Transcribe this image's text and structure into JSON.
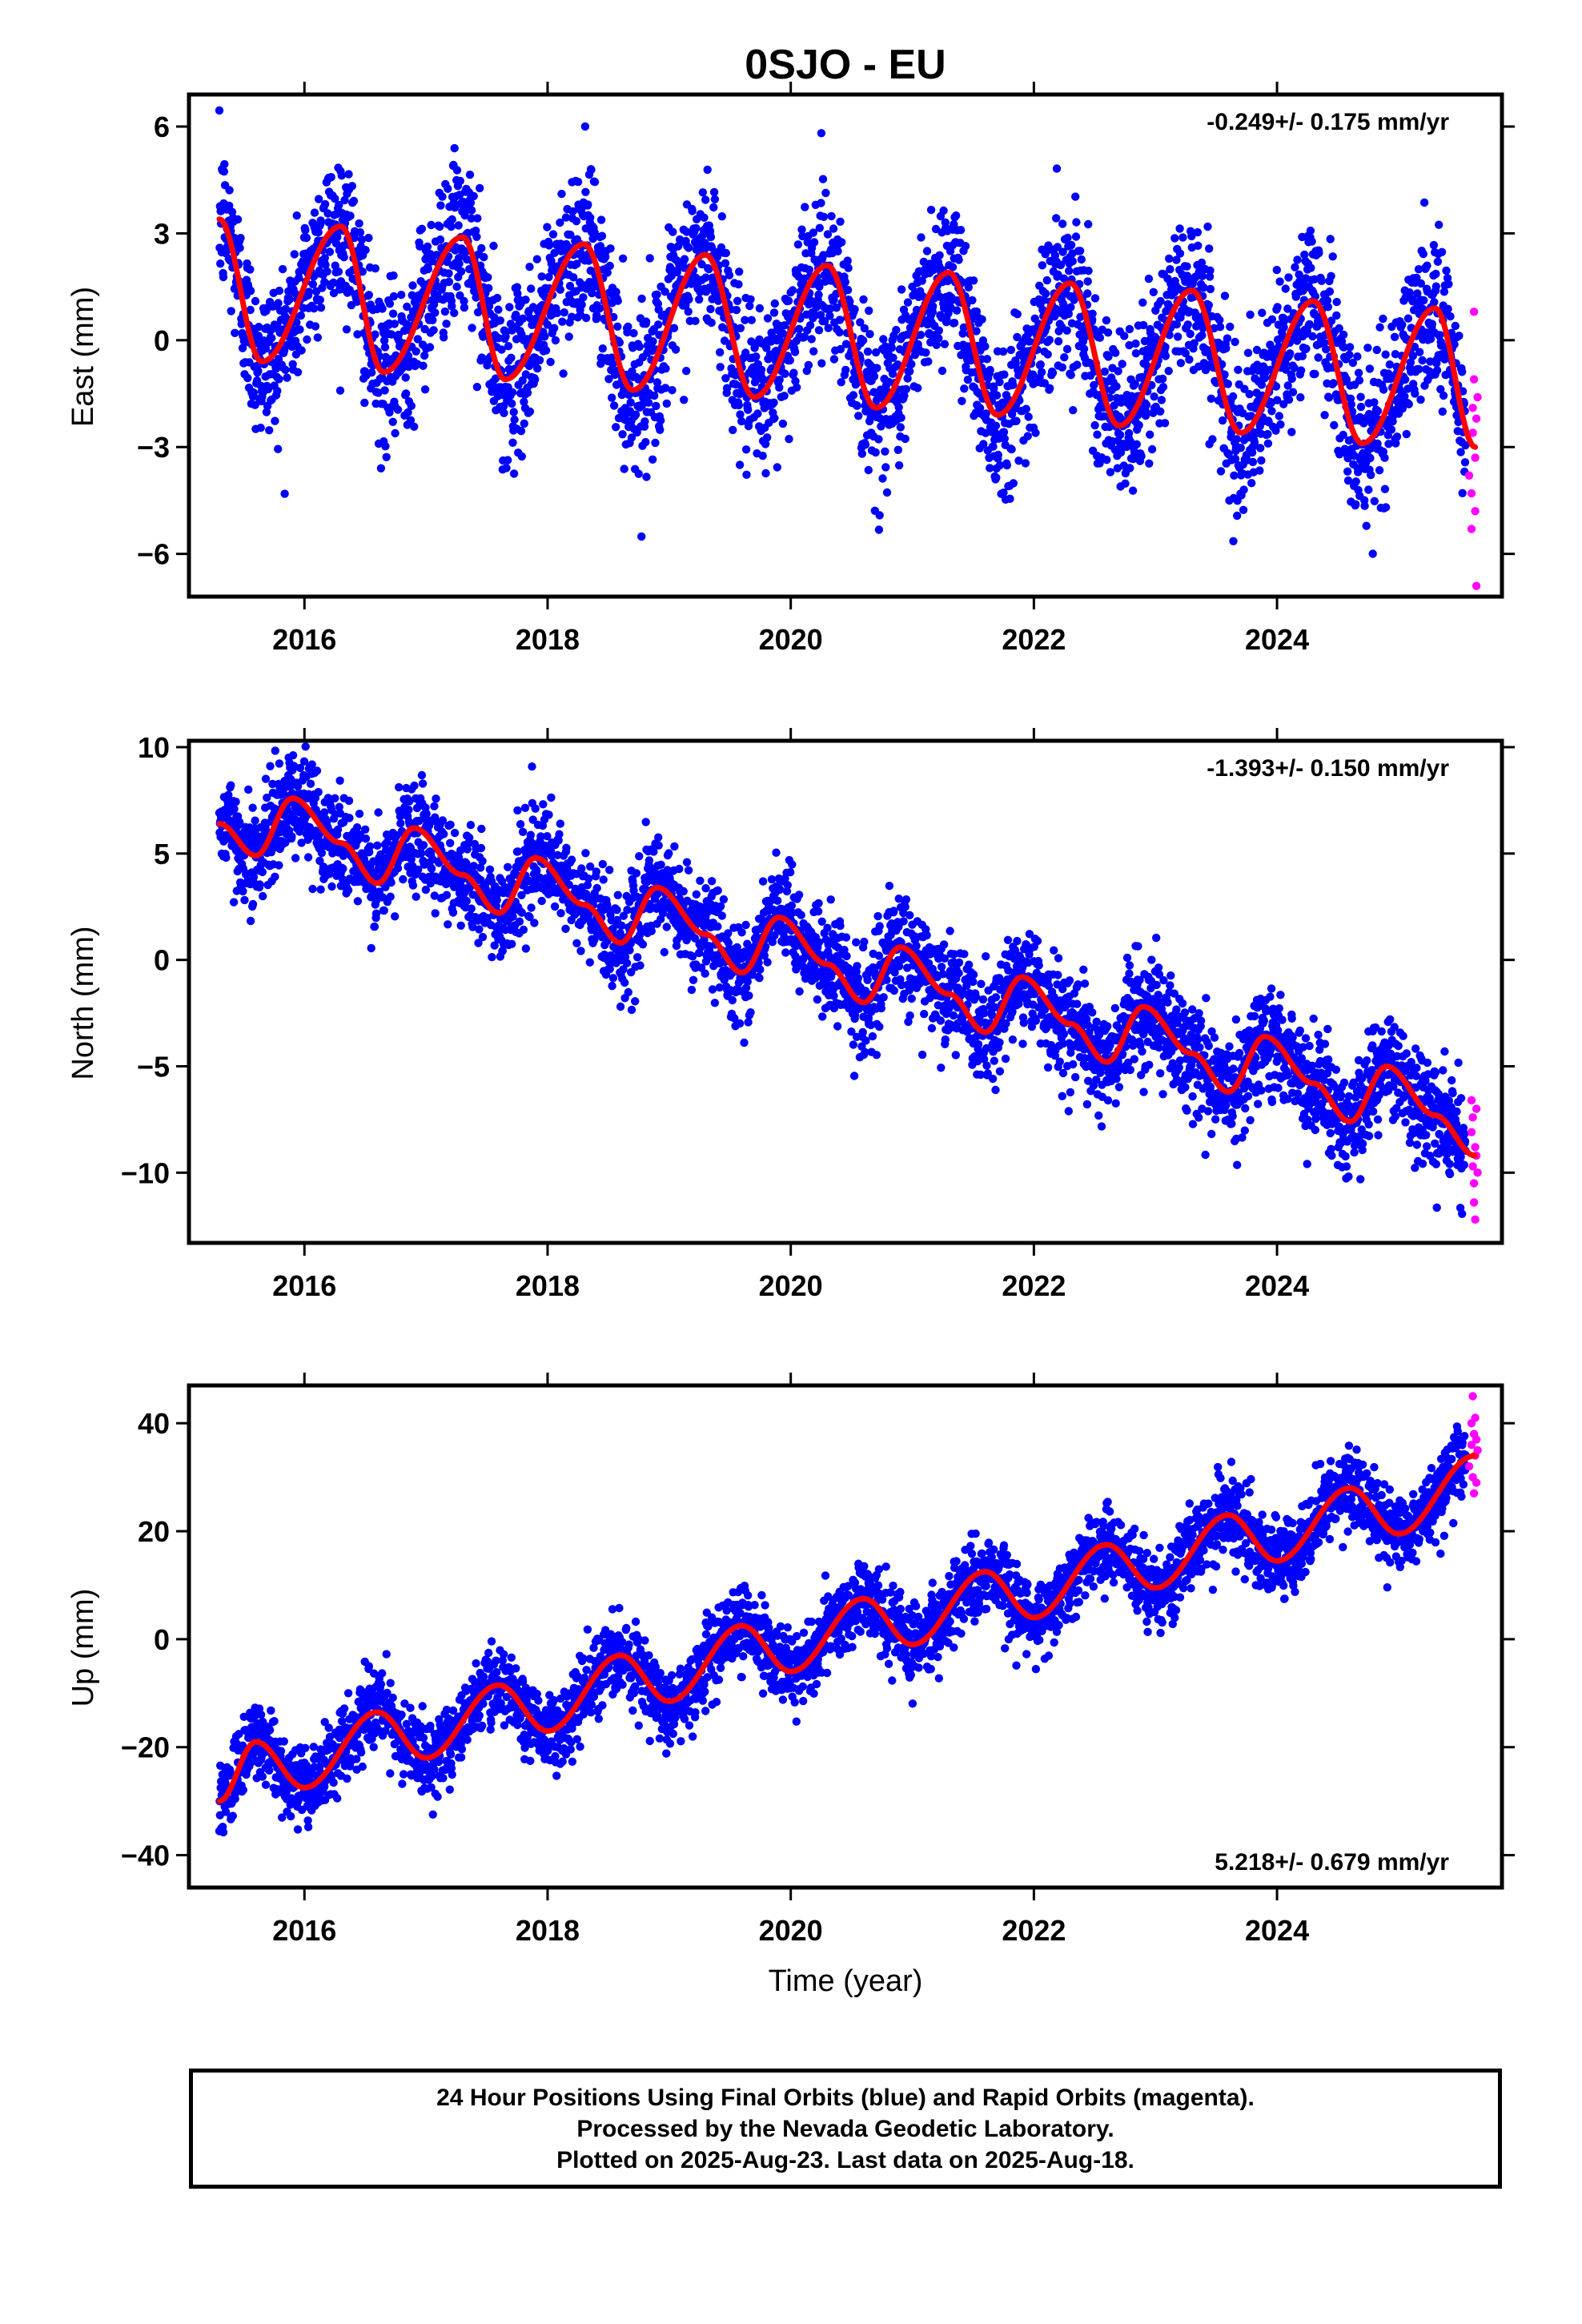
{
  "title": "0SJO - EU",
  "xlabel": "Time (year)",
  "colors": {
    "final": "#0000ff",
    "rapid": "#ff00ff",
    "fit": "#ff0000"
  },
  "footer": {
    "line1": "24 Hour Positions Using Final Orbits (blue) and Rapid Orbits (magenta).",
    "line2": "Processed by the Nevada Geodetic Laboratory.",
    "line3": "Plotted on 2025-Aug-23. Last data on 2025-Aug-18."
  },
  "chart_data": [
    {
      "type": "scatter",
      "component": "east",
      "ylabel": "East (mm)",
      "rate": "-0.249+/- 0.175 mm/yr",
      "rate_position": "top-right",
      "xlim": [
        2015.05,
        2025.85
      ],
      "ylim": [
        -7.2,
        6.9
      ],
      "xticks": [
        2016,
        2018,
        2020,
        2022,
        2024
      ],
      "yticks": [
        6,
        3,
        0,
        -3,
        -6
      ],
      "ytick_labels": [
        "6",
        "3",
        "0",
        "−3",
        "−6"
      ],
      "data_start": 2015.3,
      "data_end": 2025.63,
      "trend_mm_per_yr": -0.249,
      "intercept_mm": 1.2,
      "annual_amp_mm": 2.0,
      "annual_peak": 0.3,
      "noise_sd_mm": 1.1,
      "fit_points": [
        [
          2015.3,
          3.4
        ],
        [
          2015.65,
          -0.6
        ],
        [
          2016.3,
          3.2
        ],
        [
          2016.65,
          -0.9
        ],
        [
          2017.3,
          2.9
        ],
        [
          2017.65,
          -1.1
        ],
        [
          2018.3,
          2.7
        ],
        [
          2018.7,
          -1.4
        ],
        [
          2019.3,
          2.4
        ],
        [
          2019.7,
          -1.6
        ],
        [
          2020.3,
          2.1
        ],
        [
          2020.7,
          -1.9
        ],
        [
          2021.3,
          1.9
        ],
        [
          2021.7,
          -2.1
        ],
        [
          2022.3,
          1.6
        ],
        [
          2022.7,
          -2.4
        ],
        [
          2023.3,
          1.4
        ],
        [
          2023.7,
          -2.6
        ],
        [
          2024.3,
          1.1
        ],
        [
          2024.7,
          -2.9
        ],
        [
          2025.3,
          0.9
        ],
        [
          2025.63,
          -3.0
        ]
      ],
      "rapid_points": [
        [
          2025.58,
          -3.8
        ],
        [
          2025.6,
          -4.3
        ],
        [
          2025.6,
          -5.3
        ],
        [
          2025.61,
          -2.6
        ],
        [
          2025.61,
          -1.9
        ],
        [
          2025.62,
          0.8
        ],
        [
          2025.62,
          -1.1
        ],
        [
          2025.63,
          -4.8
        ],
        [
          2025.63,
          -3.3
        ],
        [
          2025.64,
          -6.9
        ],
        [
          2025.64,
          -2.2
        ],
        [
          2025.65,
          -1.6
        ]
      ]
    },
    {
      "type": "scatter",
      "component": "north",
      "ylabel": "North (mm)",
      "rate": "-1.393+/- 0.150 mm/yr",
      "rate_position": "top-right",
      "xlim": [
        2015.05,
        2025.85
      ],
      "ylim": [
        -13.3,
        10.3
      ],
      "xticks": [
        2016,
        2018,
        2020,
        2022,
        2024
      ],
      "yticks": [
        10,
        5,
        0,
        -5,
        -10
      ],
      "ytick_labels": [
        "10",
        "5",
        "0",
        "−5",
        "−10"
      ],
      "data_start": 2015.3,
      "data_end": 2025.63,
      "trend_mm_per_yr": -1.393,
      "intercept_mm": 6.3,
      "annual_amp_mm": 1.4,
      "annual_peak": 0.9,
      "noise_sd_mm": 1.2,
      "fit_points": [
        [
          2015.3,
          6.4
        ],
        [
          2015.6,
          4.9
        ],
        [
          2015.9,
          7.6
        ],
        [
          2016.3,
          5.5
        ],
        [
          2016.6,
          3.6
        ],
        [
          2016.9,
          6.2
        ],
        [
          2017.3,
          4.0
        ],
        [
          2017.6,
          2.2
        ],
        [
          2017.9,
          4.8
        ],
        [
          2018.3,
          2.6
        ],
        [
          2018.6,
          0.8
        ],
        [
          2018.9,
          3.4
        ],
        [
          2019.3,
          1.2
        ],
        [
          2019.6,
          -0.6
        ],
        [
          2019.9,
          2.0
        ],
        [
          2020.3,
          -0.2
        ],
        [
          2020.6,
          -2.0
        ],
        [
          2020.9,
          0.6
        ],
        [
          2021.3,
          -1.6
        ],
        [
          2021.6,
          -3.4
        ],
        [
          2021.9,
          -0.8
        ],
        [
          2022.3,
          -3.0
        ],
        [
          2022.6,
          -4.8
        ],
        [
          2022.9,
          -2.2
        ],
        [
          2023.3,
          -4.4
        ],
        [
          2023.6,
          -6.2
        ],
        [
          2023.9,
          -3.6
        ],
        [
          2024.3,
          -5.8
        ],
        [
          2024.6,
          -7.6
        ],
        [
          2024.9,
          -5.0
        ],
        [
          2025.3,
          -7.3
        ],
        [
          2025.63,
          -9.2
        ]
      ],
      "rapid_points": [
        [
          2025.6,
          -6.6
        ],
        [
          2025.6,
          -8.1
        ],
        [
          2025.61,
          -7.4
        ],
        [
          2025.61,
          -9.7
        ],
        [
          2025.62,
          -10.5
        ],
        [
          2025.62,
          -11.4
        ],
        [
          2025.63,
          -8.8
        ],
        [
          2025.63,
          -12.2
        ],
        [
          2025.64,
          -9.2
        ],
        [
          2025.64,
          -7.0
        ],
        [
          2025.65,
          -10.0
        ]
      ]
    },
    {
      "type": "scatter",
      "component": "up",
      "ylabel": "Up (mm)",
      "rate": "5.218+/- 0.679 mm/yr",
      "rate_position": "bottom-right",
      "xlim": [
        2015.05,
        2025.85
      ],
      "ylim": [
        -46,
        47
      ],
      "xticks": [
        2016,
        2018,
        2020,
        2022,
        2024
      ],
      "yticks": [
        40,
        20,
        0,
        -20,
        -40
      ],
      "ytick_labels": [
        "40",
        "20",
        "0",
        "−20",
        "−40"
      ],
      "data_start": 2015.3,
      "data_end": 2025.63,
      "trend_mm_per_yr": 5.218,
      "intercept_mm": -27,
      "annual_amp_mm": 5.5,
      "annual_peak": 0.6,
      "noise_sd_mm": 3.5,
      "fit_points": [
        [
          2015.3,
          -30
        ],
        [
          2015.6,
          -19
        ],
        [
          2016.0,
          -27.5
        ],
        [
          2016.6,
          -13.5
        ],
        [
          2017.0,
          -22
        ],
        [
          2017.6,
          -8.5
        ],
        [
          2018.0,
          -17
        ],
        [
          2018.6,
          -3
        ],
        [
          2019.0,
          -11.5
        ],
        [
          2019.6,
          2.5
        ],
        [
          2020.0,
          -6
        ],
        [
          2020.6,
          7.5
        ],
        [
          2021.0,
          -1
        ],
        [
          2021.6,
          12.5
        ],
        [
          2022.0,
          4
        ],
        [
          2022.6,
          17.5
        ],
        [
          2023.0,
          9.5
        ],
        [
          2023.6,
          23
        ],
        [
          2024.0,
          14.5
        ],
        [
          2024.6,
          28
        ],
        [
          2025.0,
          19.5
        ],
        [
          2025.63,
          34
        ]
      ],
      "rapid_points": [
        [
          2025.58,
          32
        ],
        [
          2025.6,
          36
        ],
        [
          2025.6,
          40
        ],
        [
          2025.61,
          30
        ],
        [
          2025.61,
          45
        ],
        [
          2025.62,
          38
        ],
        [
          2025.62,
          27
        ],
        [
          2025.63,
          34
        ],
        [
          2025.63,
          41
        ],
        [
          2025.64,
          29
        ],
        [
          2025.64,
          37
        ],
        [
          2025.65,
          35
        ]
      ]
    }
  ]
}
